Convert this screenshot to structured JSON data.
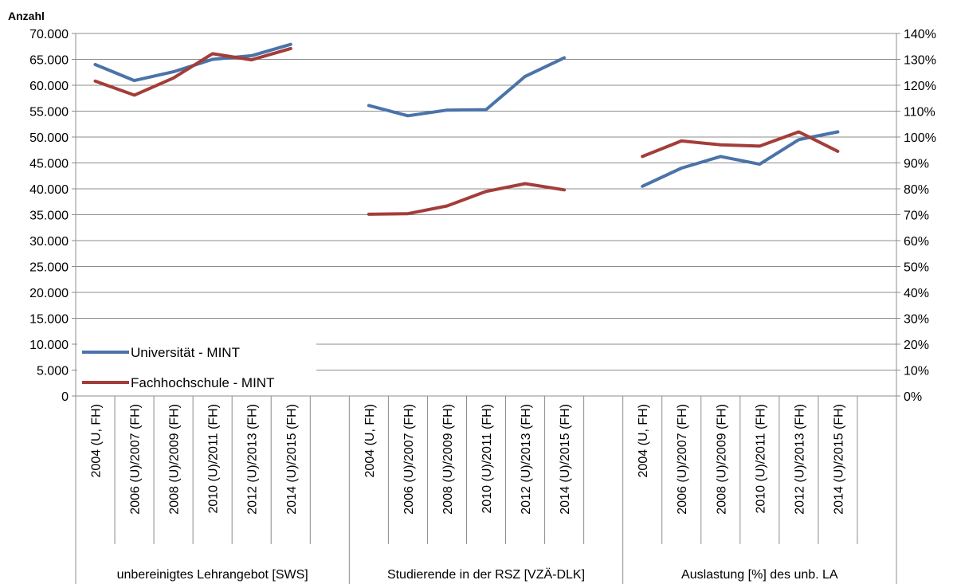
{
  "chart_data": {
    "type": "line",
    "y_unit_label": "Anzahl",
    "ylim_left": [
      0,
      70000
    ],
    "ylim_right": [
      0,
      1.4
    ],
    "y_ticks_left": [
      "0",
      "5.000",
      "10.000",
      "15.000",
      "20.000",
      "25.000",
      "30.000",
      "35.000",
      "40.000",
      "45.000",
      "50.000",
      "55.000",
      "60.000",
      "65.000",
      "70.000"
    ],
    "y_ticks_right": [
      "0%",
      "10%",
      "20%",
      "30%",
      "40%",
      "50%",
      "60%",
      "70%",
      "80%",
      "90%",
      "100%",
      "110%",
      "120%",
      "130%",
      "140%"
    ],
    "grid": true,
    "legend_position": "bottom-left",
    "colors": {
      "uni": "#4a73a8",
      "fh": "#a33d3a"
    },
    "groups": [
      {
        "label": "unbereinigtes Lehrangebot [SWS]",
        "axis": "left",
        "categories": [
          "2004 (U, FH)",
          "2006 (U)/2007 (FH)",
          "2008 (U)/2009 (FH)",
          "2010 (U)/2011 (FH)",
          "2012 (U)/2013 (FH)",
          "2014 (U)/2015 (FH)"
        ],
        "series": [
          {
            "key": "uni",
            "values": [
              64000,
              60900,
              62600,
              65000,
              65700,
              67900
            ]
          },
          {
            "key": "fh",
            "values": [
              60800,
              58100,
              61400,
              66100,
              64900,
              67100
            ]
          }
        ]
      },
      {
        "label": "Studierende in der RSZ [VZÄ-DLK]",
        "axis": "left",
        "categories": [
          "2004 (U, FH)",
          "2006 (U)/2007 (FH)",
          "2008 (U)/2009 (FH)",
          "2010 (U)/2011 (FH)",
          "2012 (U)/2013 (FH)",
          "2014 (U)/2015 (FH)"
        ],
        "series": [
          {
            "key": "uni",
            "values": [
              56100,
              54100,
              55200,
              55300,
              61700,
              65300
            ]
          },
          {
            "key": "fh",
            "values": [
              35100,
              35200,
              36700,
              39500,
              41000,
              39800
            ]
          }
        ]
      },
      {
        "label": "Auslastung [%] des unb. LA",
        "axis": "right",
        "categories": [
          "2004 (U, FH)",
          "2006 (U)/2007 (FH)",
          "2008 (U)/2009 (FH)",
          "2010 (U)/2011 (FH)",
          "2012 (U)/2013 (FH)",
          "2014 (U)/2015 (FH)"
        ],
        "series": [
          {
            "key": "uni",
            "values": [
              0.81,
              0.88,
              0.925,
              0.895,
              0.99,
              1.02
            ]
          },
          {
            "key": "fh",
            "values": [
              0.925,
              0.985,
              0.97,
              0.965,
              1.02,
              0.945
            ]
          }
        ]
      }
    ],
    "legend": [
      {
        "key": "uni",
        "label": "Universität - MINT"
      },
      {
        "key": "fh",
        "label": "Fachhochschule - MINT"
      }
    ]
  }
}
